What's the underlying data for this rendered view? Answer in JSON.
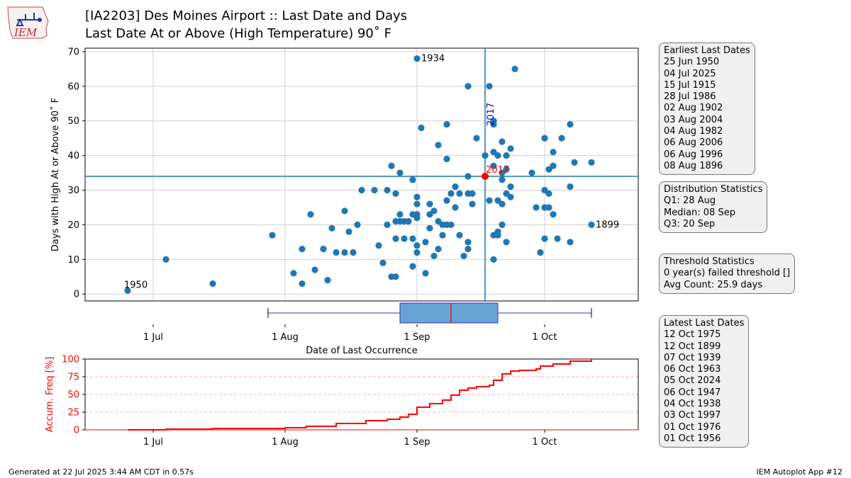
{
  "header": {
    "logo_text": "IEM",
    "title_line1": "[IA2203] Des Moines Airport :: Last Date and Days",
    "title_line2": "Last Date At or Above (High Temperature) 90˚ F"
  },
  "panels": {
    "earliest": {
      "title": "Earliest Last Dates",
      "items": [
        "25 Jun 1950",
        "04 Jul 2025",
        "15 Jul 1915",
        "28 Jul 1986",
        "02 Aug 1902",
        "03 Aug 2004",
        "04 Aug 1982",
        "06 Aug 2006",
        "06 Aug 1996",
        "08 Aug 1896"
      ]
    },
    "distribution": {
      "title": "Distribution Statistics",
      "items": [
        "Q1: 28 Aug",
        "Median: 08 Sep",
        "Q3: 20 Sep"
      ]
    },
    "threshold": {
      "title": "Threshold Statistics",
      "items": [
        "0 year(s) failed threshold []",
        "Avg Count: 25.9 days"
      ]
    },
    "latest": {
      "title": "Latest Last Dates",
      "items": [
        "12 Oct 1975",
        "12 Oct 1899",
        "07 Oct 1939",
        "06 Oct 1963",
        "05 Oct 2024",
        "06 Oct 1947",
        "04 Oct 1938",
        "03 Oct 1997",
        "01 Oct 1976",
        "01 Oct 1956"
      ]
    }
  },
  "footer": {
    "left": "Generated at 22 Jul 2025 3:44 AM CDT in 0.57s",
    "right": "IEM Autoplot App #12"
  },
  "chart_data": [
    {
      "type": "scatter",
      "xlabel": "Date of Last Occurrence",
      "ylabel": "Days with High At or Above 90˚ F",
      "x_ticks": [
        {
          "label": "1 Jul",
          "doy": 182
        },
        {
          "label": "1 Aug",
          "doy": 213
        },
        {
          "label": "1 Sep",
          "doy": 244
        },
        {
          "label": "1 Oct",
          "doy": 274
        }
      ],
      "xlim_doy": [
        166,
        296
      ],
      "ylim": [
        -2,
        71
      ],
      "y_ticks": [
        0,
        10,
        20,
        30,
        40,
        50,
        60,
        70
      ],
      "grid": true,
      "color": "#1f77b4",
      "highlight": {
        "label": "2017",
        "doy": 260,
        "days": 34,
        "color": "#ff0000",
        "line_color": "#0000cc"
      },
      "hline_days": 34,
      "annotations": [
        {
          "text": "1934",
          "doy": 244,
          "days": 68
        },
        {
          "text": "1950",
          "doy": 176,
          "days": 1
        },
        {
          "text": "1899",
          "doy": 285,
          "days": 20
        }
      ],
      "points": [
        [
          176,
          1
        ],
        [
          185,
          10
        ],
        [
          196,
          3
        ],
        [
          210,
          17
        ],
        [
          215,
          6
        ],
        [
          217,
          13
        ],
        [
          217,
          3
        ],
        [
          219,
          23
        ],
        [
          220,
          7
        ],
        [
          222,
          13
        ],
        [
          223,
          4
        ],
        [
          224,
          19
        ],
        [
          225,
          12
        ],
        [
          227,
          12
        ],
        [
          227,
          24
        ],
        [
          228,
          18
        ],
        [
          229,
          12
        ],
        [
          230,
          20
        ],
        [
          231,
          30
        ],
        [
          234,
          30
        ],
        [
          235,
          14
        ],
        [
          236,
          9
        ],
        [
          237,
          30
        ],
        [
          237,
          20
        ],
        [
          238,
          37
        ],
        [
          238,
          5
        ],
        [
          239,
          16
        ],
        [
          239,
          29
        ],
        [
          239,
          21
        ],
        [
          239,
          5
        ],
        [
          240,
          35
        ],
        [
          240,
          23
        ],
        [
          240,
          21
        ],
        [
          241,
          16
        ],
        [
          241,
          21
        ],
        [
          242,
          21
        ],
        [
          243,
          33
        ],
        [
          243,
          23
        ],
        [
          243,
          16
        ],
        [
          243,
          8
        ],
        [
          244,
          68
        ],
        [
          244,
          28
        ],
        [
          244,
          26
        ],
        [
          244,
          23
        ],
        [
          244,
          22
        ],
        [
          244,
          14
        ],
        [
          244,
          12
        ],
        [
          245,
          48
        ],
        [
          246,
          15
        ],
        [
          246,
          6
        ],
        [
          247,
          26
        ],
        [
          247,
          23
        ],
        [
          247,
          19
        ],
        [
          248,
          24
        ],
        [
          248,
          11
        ],
        [
          249,
          43
        ],
        [
          249,
          21
        ],
        [
          249,
          13
        ],
        [
          250,
          20
        ],
        [
          250,
          17
        ],
        [
          251,
          49
        ],
        [
          251,
          39
        ],
        [
          251,
          27
        ],
        [
          251,
          20
        ],
        [
          252,
          29
        ],
        [
          252,
          20
        ],
        [
          253,
          31
        ],
        [
          253,
          25
        ],
        [
          254,
          29
        ],
        [
          254,
          17
        ],
        [
          255,
          11
        ],
        [
          256,
          60
        ],
        [
          256,
          34
        ],
        [
          256,
          29
        ],
        [
          256,
          15
        ],
        [
          256,
          13
        ],
        [
          257,
          29
        ],
        [
          257,
          26
        ],
        [
          258,
          45
        ],
        [
          260,
          40
        ],
        [
          261,
          60
        ],
        [
          261,
          27
        ],
        [
          262,
          50
        ],
        [
          262,
          49
        ],
        [
          262,
          41
        ],
        [
          262,
          37
        ],
        [
          262,
          17
        ],
        [
          262,
          10
        ],
        [
          263,
          40
        ],
        [
          263,
          27
        ],
        [
          263,
          18
        ],
        [
          263,
          17
        ],
        [
          264,
          44
        ],
        [
          264,
          35
        ],
        [
          264,
          33
        ],
        [
          264,
          26
        ],
        [
          264,
          20
        ],
        [
          265,
          40
        ],
        [
          265,
          36
        ],
        [
          265,
          29
        ],
        [
          265,
          15
        ],
        [
          266,
          42
        ],
        [
          266,
          31
        ],
        [
          266,
          28
        ],
        [
          267,
          65
        ],
        [
          271,
          35
        ],
        [
          272,
          25
        ],
        [
          273,
          12
        ],
        [
          274,
          45
        ],
        [
          274,
          30
        ],
        [
          274,
          25
        ],
        [
          274,
          16
        ],
        [
          275,
          36
        ],
        [
          275,
          29
        ],
        [
          275,
          25
        ],
        [
          276,
          41
        ],
        [
          276,
          37
        ],
        [
          276,
          23
        ],
        [
          277,
          16
        ],
        [
          278,
          45
        ],
        [
          280,
          49
        ],
        [
          280,
          31
        ],
        [
          280,
          15
        ],
        [
          281,
          38
        ],
        [
          285,
          20
        ],
        [
          285,
          38
        ]
      ],
      "boxplot": {
        "whisker_low_doy": 209,
        "q1_doy": 240,
        "median_doy": 252,
        "q3_doy": 263,
        "whisker_high_doy": 285
      }
    },
    {
      "type": "line",
      "ylabel": "Accum. Freq [%]",
      "ylim": [
        0,
        100
      ],
      "y_ticks": [
        0,
        25,
        50,
        75,
        100
      ],
      "color": "#ff0000",
      "x_doy": [
        176,
        185,
        196,
        213,
        218,
        225,
        232,
        237,
        240,
        242,
        244,
        247,
        250,
        252,
        254,
        256,
        258,
        261,
        262,
        264,
        266,
        268,
        272,
        273,
        276,
        280,
        285
      ],
      "y_pct": [
        0,
        1,
        2,
        3,
        5,
        9,
        13,
        15,
        18,
        22,
        32,
        37,
        42,
        49,
        56,
        59,
        61,
        63,
        70,
        79,
        83,
        84,
        86,
        90,
        93,
        97,
        100
      ]
    }
  ]
}
